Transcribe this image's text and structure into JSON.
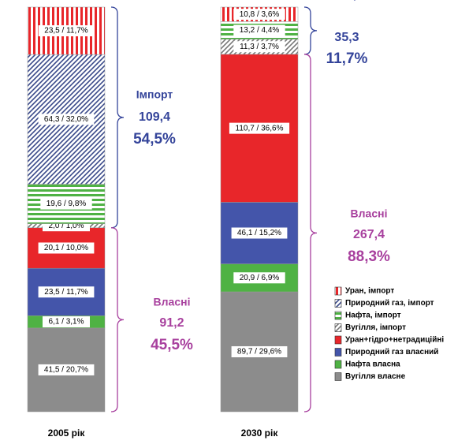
{
  "chart_data": {
    "type": "stacked-bar",
    "categories": [
      "2005 рік",
      "2030 рік"
    ],
    "series": [
      {
        "name": "Вугілля власне",
        "color": "#8c8c8c",
        "hatch": "none",
        "values": [
          41.5,
          89.7
        ],
        "value_labels": [
          "41,5 / 20,7%",
          "89,7 / 29,6%"
        ]
      },
      {
        "name": "Нафта власна",
        "color": "#4fb244",
        "hatch": "none",
        "values": [
          6.1,
          20.9
        ],
        "value_labels": [
          "6,1 / 3,1%",
          "20,9 / 6,9%"
        ]
      },
      {
        "name": "Природний газ власний",
        "color": "#4455aa",
        "hatch": "none",
        "values": [
          23.5,
          46.1
        ],
        "value_labels": [
          "23,5 / 11,7%",
          "46,1 / 15,2%"
        ]
      },
      {
        "name": "Уран+гідро+нетрадиційні",
        "color": "#e8262a",
        "hatch": "none",
        "values": [
          20.1,
          110.7
        ],
        "value_labels": [
          "20,1 / 10,0%",
          "110,7 / 36,6%"
        ]
      },
      {
        "name": "Вугілля, імпорт",
        "color": "#777777",
        "hatch": "diagonal",
        "values": [
          2.0,
          11.3
        ],
        "value_labels": [
          "2,0 / 1,0%",
          "11,3 / 3,7%"
        ]
      },
      {
        "name": "Нафта, імпорт",
        "color": "#4fb244",
        "hatch": "horizontal",
        "values": [
          19.6,
          13.2
        ],
        "value_labels": [
          "19,6 / 9,8%",
          "13,2 / 4,4%"
        ]
      },
      {
        "name": "Природний газ, імпорт",
        "color": "#3a4a8a",
        "hatch": "diagonal",
        "values": [
          64.3,
          null
        ],
        "value_labels": [
          "64,3 / 32,0%",
          null
        ]
      },
      {
        "name": "Уран, імпорт",
        "color": "#e8262a",
        "hatch": "vertical",
        "values": [
          23.5,
          10.8
        ],
        "value_labels": [
          "23,5 / 11,7%",
          "10,8 / 3,6%"
        ]
      }
    ],
    "annotations": [
      {
        "import_title": "Імпорт",
        "import_value": "109,4",
        "import_share": "54,5%",
        "own_title": "Власні",
        "own_value": "91,2",
        "own_share": "45,5%"
      },
      {
        "import_title": "Імпорт",
        "import_value": "35,3",
        "import_share": "11,7%",
        "own_title": "Власні",
        "own_value": "267,4",
        "own_share": "88,3%"
      }
    ]
  }
}
